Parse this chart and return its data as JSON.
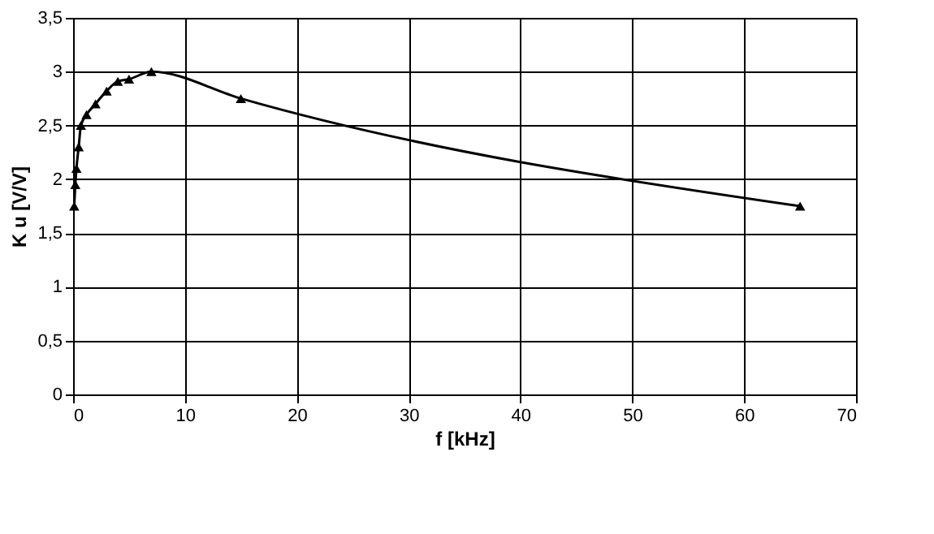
{
  "chart_data": {
    "type": "line",
    "xlabel": "f [kHz]",
    "ylabel": "K u [V/V]",
    "x": [
      0.1,
      0.2,
      0.3,
      0.5,
      0.7,
      1.2,
      2,
      3,
      4,
      5,
      7,
      15,
      65
    ],
    "series": [
      {
        "color": "#000000",
        "values": [
          1.75,
          1.95,
          2.1,
          2.3,
          2.5,
          2.6,
          2.7,
          2.82,
          2.91,
          2.93,
          3.0,
          2.75,
          1.75
        ]
      }
    ],
    "xlim": [
      0,
      70
    ],
    "xticks": [
      0,
      10,
      20,
      30,
      40,
      50,
      60,
      70
    ],
    "ylim": [
      0,
      3.5
    ],
    "yticks": [
      {
        "value": 0,
        "label": "0"
      },
      {
        "value": 0.5,
        "label": "0,5"
      },
      {
        "value": 1,
        "label": "1"
      },
      {
        "value": 1.5,
        "label": "1,5"
      },
      {
        "value": 2,
        "label": "2"
      },
      {
        "value": 2.5,
        "label": "2,5"
      },
      {
        "value": 3,
        "label": "3"
      },
      {
        "value": 3.5,
        "label": "3,5"
      }
    ],
    "grid": true,
    "marker": "triangle",
    "line_style": "solid"
  }
}
